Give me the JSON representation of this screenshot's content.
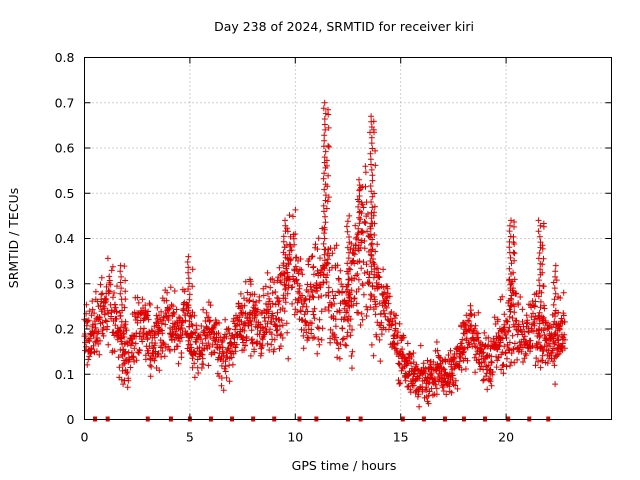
{
  "chart_data": {
    "type": "scatter",
    "title": "Day 238 of 2024, SRMTID for receiver kiri",
    "xlabel": "GPS time / hours",
    "ylabel": "SRMTID / TECUs",
    "xlim": [
      0,
      25
    ],
    "ylim": [
      0,
      0.8
    ],
    "x_ticks": [
      0,
      5,
      10,
      15,
      20
    ],
    "x_tick_labels": [
      "0",
      "5",
      "10",
      "15",
      "20"
    ],
    "y_ticks": [
      0,
      0.1,
      0.2,
      0.3,
      0.4,
      0.5,
      0.6,
      0.7,
      0.8
    ],
    "y_tick_labels": [
      "0",
      "0.1",
      "0.2",
      "0.3",
      "0.4",
      "0.5",
      "0.6",
      "0.7",
      "0.8"
    ],
    "grid": true,
    "marker": "plus",
    "series_color": "#e00000",
    "series": [
      {
        "name": "SRMTID",
        "x": [
          0.0,
          0.3,
          0.6,
          0.9,
          1.2,
          1.5,
          1.8,
          2.1,
          2.4,
          2.7,
          3.0,
          3.3,
          3.6,
          3.9,
          4.2,
          4.5,
          4.8,
          5.1,
          5.4,
          5.7,
          6.0,
          6.3,
          6.6,
          6.9,
          7.2,
          7.5,
          7.8,
          8.1,
          8.4,
          8.7,
          9.0,
          9.3,
          9.6,
          9.9,
          10.2,
          10.5,
          10.8,
          11.1,
          11.4,
          11.7,
          12.0,
          12.3,
          12.6,
          12.9,
          13.2,
          13.5,
          13.8,
          14.1,
          14.4,
          14.7,
          15.0,
          15.3,
          15.6,
          15.9,
          16.2,
          16.5,
          16.8,
          17.1,
          17.4,
          17.7,
          18.0,
          18.3,
          18.6,
          18.9,
          19.2,
          19.5,
          19.8,
          20.1,
          20.4,
          20.7,
          21.0,
          21.3,
          21.6,
          21.9,
          22.2,
          22.5,
          22.8
        ],
        "y": [
          0.2,
          0.18,
          0.22,
          0.24,
          0.26,
          0.2,
          0.16,
          0.14,
          0.2,
          0.22,
          0.18,
          0.16,
          0.2,
          0.22,
          0.2,
          0.18,
          0.24,
          0.17,
          0.15,
          0.18,
          0.2,
          0.16,
          0.14,
          0.16,
          0.2,
          0.22,
          0.24,
          0.22,
          0.2,
          0.24,
          0.22,
          0.26,
          0.3,
          0.36,
          0.28,
          0.22,
          0.3,
          0.26,
          0.34,
          0.28,
          0.24,
          0.2,
          0.26,
          0.36,
          0.4,
          0.34,
          0.3,
          0.26,
          0.24,
          0.18,
          0.14,
          0.12,
          0.1,
          0.09,
          0.08,
          0.1,
          0.12,
          0.09,
          0.11,
          0.14,
          0.18,
          0.2,
          0.17,
          0.14,
          0.12,
          0.16,
          0.18,
          0.22,
          0.24,
          0.2,
          0.18,
          0.22,
          0.2,
          0.18,
          0.16,
          0.18,
          0.2
        ],
        "spread": [
          0.06,
          0.05,
          0.06,
          0.06,
          0.07,
          0.06,
          0.05,
          0.05,
          0.05,
          0.05,
          0.05,
          0.05,
          0.06,
          0.05,
          0.05,
          0.05,
          0.06,
          0.05,
          0.05,
          0.05,
          0.05,
          0.05,
          0.05,
          0.05,
          0.05,
          0.06,
          0.06,
          0.05,
          0.05,
          0.06,
          0.07,
          0.08,
          0.1,
          0.08,
          0.08,
          0.07,
          0.09,
          0.1,
          0.12,
          0.1,
          0.08,
          0.07,
          0.1,
          0.12,
          0.14,
          0.12,
          0.1,
          0.08,
          0.06,
          0.05,
          0.05,
          0.04,
          0.04,
          0.04,
          0.04,
          0.04,
          0.04,
          0.04,
          0.04,
          0.05,
          0.05,
          0.05,
          0.05,
          0.05,
          0.05,
          0.05,
          0.06,
          0.08,
          0.08,
          0.06,
          0.05,
          0.06,
          0.07,
          0.05,
          0.05,
          0.05,
          0.05
        ],
        "peaks": [
          {
            "x": 1.75,
            "y": 0.34
          },
          {
            "x": 4.95,
            "y": 0.36
          },
          {
            "x": 9.5,
            "y": 0.44
          },
          {
            "x": 11.4,
            "y": 0.7
          },
          {
            "x": 12.5,
            "y": 0.45
          },
          {
            "x": 13.0,
            "y": 0.53
          },
          {
            "x": 13.6,
            "y": 0.67
          },
          {
            "x": 20.2,
            "y": 0.44
          },
          {
            "x": 21.6,
            "y": 0.44
          },
          {
            "x": 22.3,
            "y": 0.34
          }
        ]
      }
    ],
    "zero_marks_x": [
      0.5,
      1.1,
      3.0,
      4.1,
      5.0,
      6.0,
      7.0,
      8.0,
      9.0,
      10.2,
      11.0,
      12.5,
      13.1,
      15.1,
      16.1,
      17.1,
      18.0,
      19.0,
      20.1,
      21.1,
      22.0
    ]
  }
}
